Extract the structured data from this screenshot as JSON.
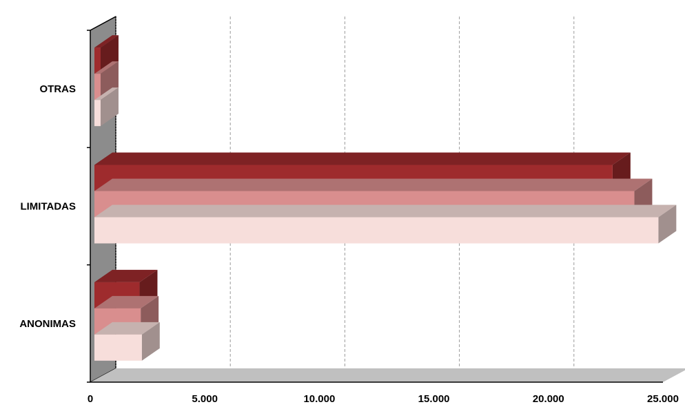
{
  "chart_data": {
    "type": "bar",
    "orientation": "horizontal",
    "three_d": true,
    "categories": [
      "ANONIMAS",
      "LIMITADAS",
      "OTRAS"
    ],
    "series": [
      {
        "values": [
          2250,
          24800,
          450
        ],
        "color": "#f7dedb"
      },
      {
        "values": [
          2200,
          23750,
          450
        ],
        "color": "#d98e8e"
      },
      {
        "values": [
          2150,
          22800,
          450
        ],
        "color": "#9e2b2d"
      }
    ],
    "xlim": [
      0,
      25000
    ],
    "xticks": [
      "0",
      "5.000",
      "10.000",
      "15.000",
      "20.000",
      "25.000"
    ],
    "title": "",
    "xlabel": "",
    "ylabel": "",
    "grid": "vertical-dashed",
    "legend": "none"
  }
}
